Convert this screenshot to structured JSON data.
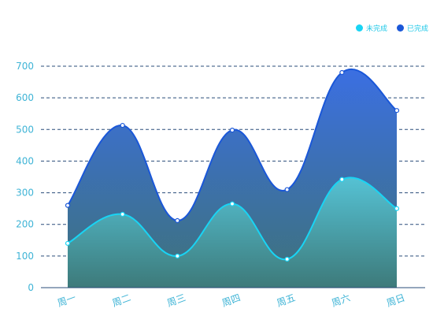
{
  "chart_data": {
    "type": "area",
    "categories": [
      "周一",
      "周二",
      "周三",
      "周四",
      "周五",
      "周六",
      "周日"
    ],
    "series": [
      {
        "name": "已完成",
        "values": [
          260,
          513,
          212,
          498,
          310,
          680,
          560
        ],
        "color": "#1a57d8"
      },
      {
        "name": "未完成",
        "values": [
          140,
          232,
          100,
          265,
          90,
          342,
          250
        ],
        "color": "#19d4f4"
      }
    ],
    "yticks": [
      0,
      100,
      200,
      300,
      400,
      500,
      600,
      700
    ],
    "ylim": [
      0,
      700
    ],
    "grid": true,
    "legend_position": "top-right"
  }
}
